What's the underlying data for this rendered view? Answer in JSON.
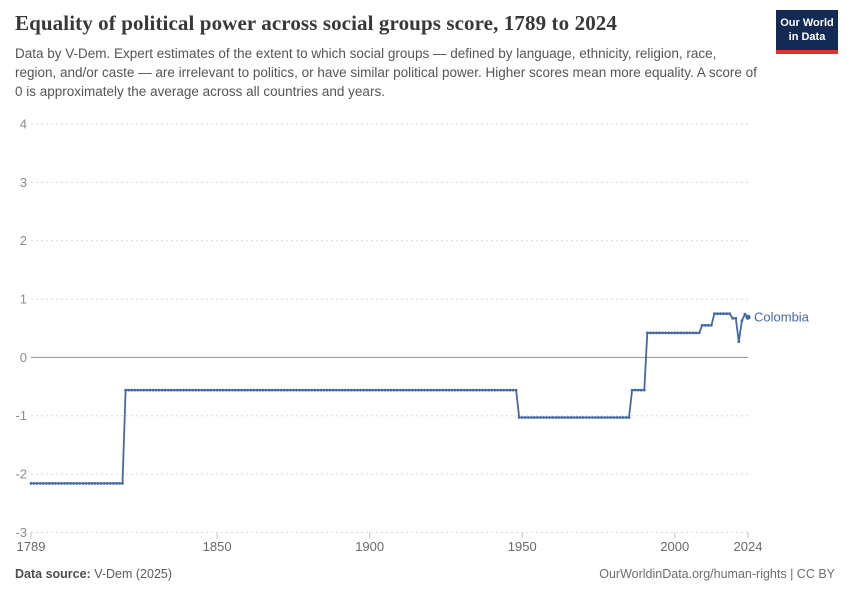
{
  "header": {
    "title": "Equality of political power across social groups score, 1789 to 2024",
    "subtitle": "Data by V-Dem. Expert estimates of the extent to which social groups — defined by language, ethnicity, religion, race, region, and/or caste — are irrelevant to politics, or have similar political power. Higher scores mean more equality. A score of 0 is approximately the average across all countries and years.",
    "logo": {
      "line1": "Our World",
      "line2": "in Data",
      "bg": "#122a54",
      "stripe": "#e0322b"
    }
  },
  "footer": {
    "source_label": "Data source:",
    "source_value": " V-Dem (2025)",
    "rights": "OurWorldinData.org/human-rights | CC BY"
  },
  "chart_data": {
    "type": "line",
    "title": "Equality of political power across social groups score, 1789 to 2024",
    "entity": "Colombia",
    "line_color": "#4569a5",
    "grid_color": "#d8d8d8",
    "zero_line_color": "#8f8f8f",
    "xlim": [
      1789,
      2024
    ],
    "ylim": [
      -3,
      4
    ],
    "x_ticks": [
      1789,
      1850,
      1900,
      1950,
      2000,
      2024
    ],
    "y_ticks": [
      4,
      3,
      2,
      1,
      0,
      -1,
      -2,
      -3
    ],
    "grid": "horizontal dashed, solid line at 0",
    "legend_position": "label at end of line",
    "interpolation": "yearly step values",
    "series": [
      {
        "name": "Colombia",
        "segments": [
          {
            "from": 1789,
            "to": 1819,
            "value": -2.16
          },
          {
            "from": 1820,
            "to": 1948,
            "value": -0.56
          },
          {
            "from": 1949,
            "to": 1985,
            "value": -1.03
          },
          {
            "from": 1986,
            "to": 1990,
            "value": -0.56
          },
          {
            "from": 1991,
            "to": 2008,
            "value": 0.42
          },
          {
            "from": 2009,
            "to": 2012,
            "value": 0.55
          },
          {
            "from": 2013,
            "to": 2018,
            "value": 0.75
          },
          {
            "from": 2019,
            "to": 2020,
            "value": 0.67
          },
          {
            "from": 2021,
            "to": 2021,
            "value": 0.27
          },
          {
            "from": 2022,
            "to": 2022,
            "value": 0.63
          },
          {
            "from": 2023,
            "to": 2023,
            "value": 0.74
          },
          {
            "from": 2024,
            "to": 2024,
            "value": 0.69
          }
        ]
      }
    ]
  }
}
